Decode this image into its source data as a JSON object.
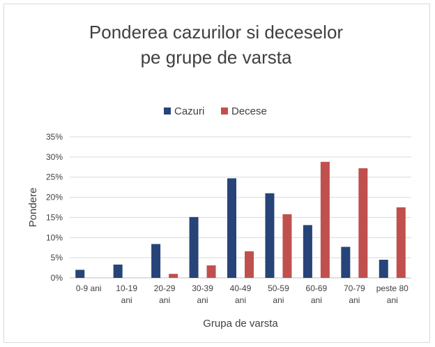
{
  "chart_data": {
    "type": "bar",
    "title": [
      "Ponderea cazurilor si deceselor",
      "pe grupe de varsta"
    ],
    "xlabel": "Grupa de varsta",
    "ylabel": "Pondere",
    "categories": [
      [
        "0-9 ani"
      ],
      [
        "10-19",
        "ani"
      ],
      [
        "20-29",
        "ani"
      ],
      [
        "30-39",
        "ani"
      ],
      [
        "40-49",
        "ani"
      ],
      [
        "50-59",
        "ani"
      ],
      [
        "60-69",
        "ani"
      ],
      [
        "70-79",
        "ani"
      ],
      [
        "peste 80",
        "ani"
      ]
    ],
    "series": [
      {
        "name": "Cazuri",
        "color": "#264478",
        "values": [
          2.0,
          3.3,
          8.4,
          15.1,
          24.7,
          21.0,
          13.1,
          7.7,
          4.5
        ]
      },
      {
        "name": "Decese",
        "color": "#C0504D",
        "values": [
          0.0,
          0.0,
          1.0,
          3.1,
          6.6,
          15.8,
          28.8,
          27.2,
          17.5
        ]
      }
    ],
    "ylim": [
      0,
      35
    ],
    "yticks": [
      "0%",
      "5%",
      "10%",
      "15%",
      "20%",
      "25%",
      "30%",
      "35%"
    ],
    "grid": true,
    "legend_position": "top"
  }
}
